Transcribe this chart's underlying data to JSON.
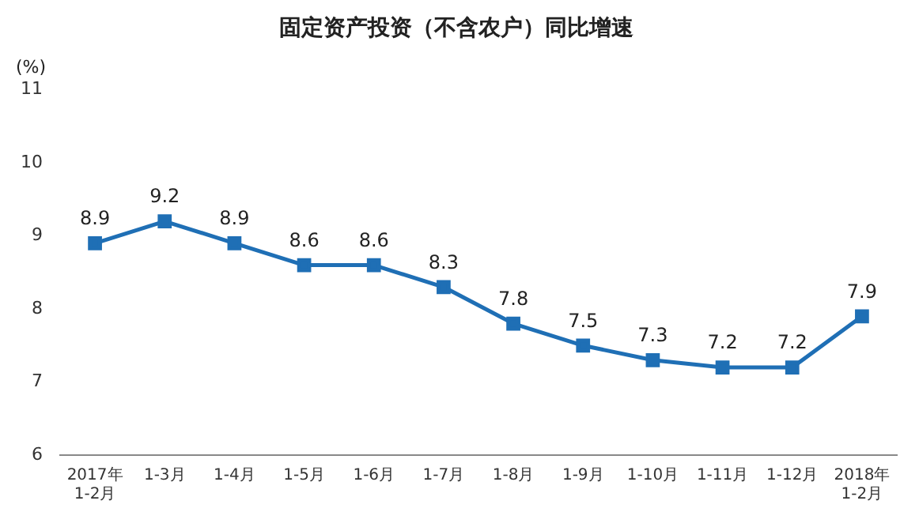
{
  "chart_data": {
    "type": "line",
    "title": "固定资产投资（不含农户）同比增速",
    "ylabel": "(%)",
    "categories": [
      "2017年\n1-2月",
      "1-3月",
      "1-4月",
      "1-5月",
      "1-6月",
      "1-7月",
      "1-8月",
      "1-9月",
      "1-10月",
      "1-11月",
      "1-12月",
      "2018年\n1-2月"
    ],
    "series": [
      {
        "color": "#1f6fb5",
        "values": [
          8.9,
          9.2,
          8.9,
          8.6,
          8.6,
          8.3,
          7.8,
          7.5,
          7.3,
          7.2,
          7.2,
          7.9
        ]
      }
    ],
    "ylim": [
      6,
      11
    ],
    "yticks": [
      6,
      7,
      8,
      9,
      10,
      11
    ],
    "grid": false,
    "legend": false,
    "marker": "square",
    "line_style": "solid",
    "data_labels": true
  }
}
